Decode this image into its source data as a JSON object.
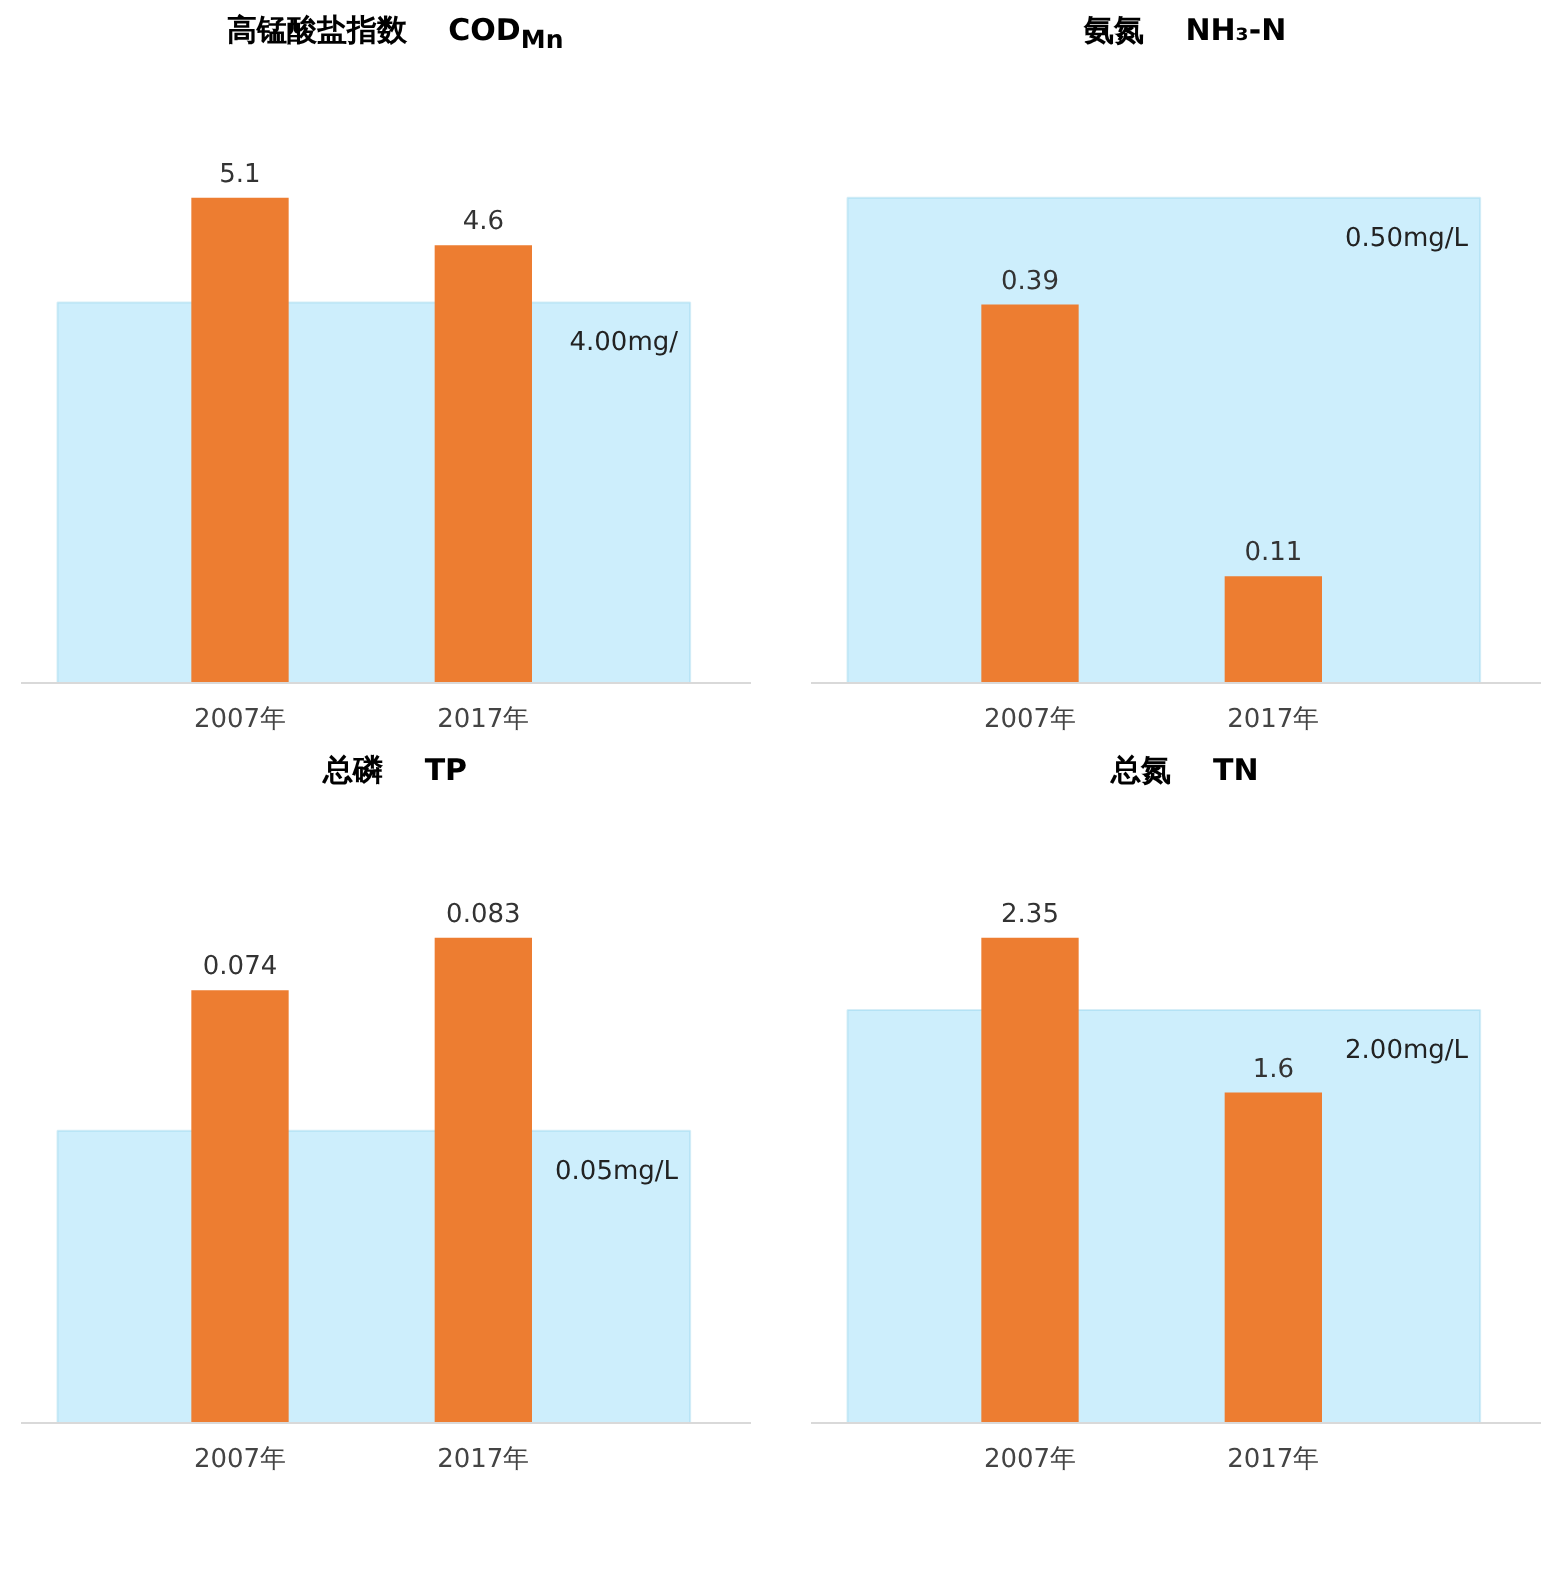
{
  "chart_data": [
    {
      "type": "bar",
      "title": "高锰酸盐指数    COD$_{Mn}$",
      "categories": [
        "2007年",
        "2017年"
      ],
      "values": [
        5.1,
        4.6
      ],
      "color": "#ed7d31",
      "data_labels": true,
      "bands": [
        {
          "axis": "y",
          "from": 0,
          "to": 4.0,
          "label": "4.00mg/",
          "color": "#cdeefc"
        }
      ]
    },
    {
      "type": "bar",
      "title": "氨氮    NH₃-N",
      "categories": [
        "2007年",
        "2017年"
      ],
      "values": [
        0.39,
        0.11
      ],
      "color": "#ed7d31",
      "data_labels": true,
      "bands": [
        {
          "axis": "y",
          "from": 0,
          "to": 0.5,
          "label": "0.50mg/L",
          "color": "#cdeefc"
        }
      ]
    },
    {
      "type": "bar",
      "title": "总磷    TP",
      "categories": [
        "2007年",
        "2017年"
      ],
      "values": [
        0.074,
        0.083
      ],
      "color": "#ed7d31",
      "data_labels": true,
      "bands": [
        {
          "axis": "y",
          "from": 0,
          "to": 0.05,
          "label": "0.05mg/L",
          "color": "#cdeefc"
        }
      ]
    },
    {
      "type": "bar",
      "title": "总氮    TN",
      "categories": [
        "2007年",
        "2017年"
      ],
      "values": [
        2.35,
        1.6
      ],
      "color": "#ed7d31",
      "data_labels": true,
      "bands": [
        {
          "axis": "y",
          "from": 0,
          "to": 2.0,
          "label": "2.00mg/L",
          "color": "#cdeefc"
        }
      ]
    }
  ]
}
